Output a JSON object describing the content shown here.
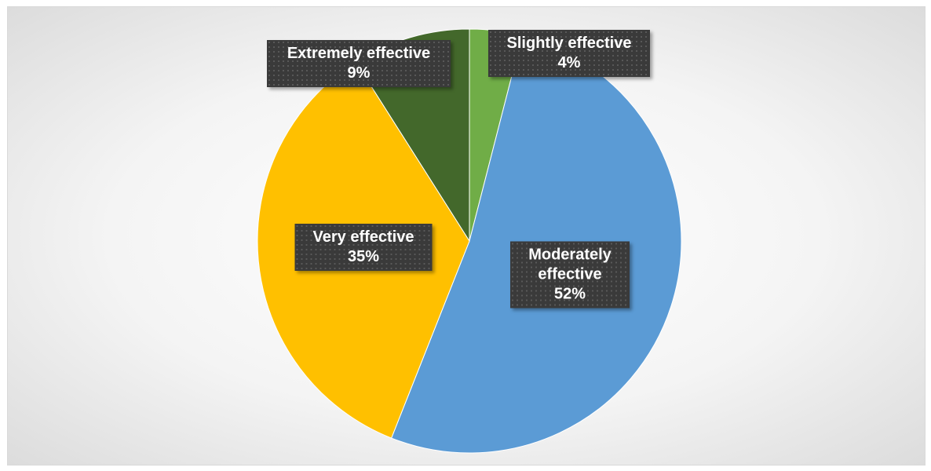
{
  "chart_data": {
    "type": "pie",
    "categories": [
      "Slightly effective",
      "Moderately effective",
      "Very effective",
      "Extremely effective"
    ],
    "values": [
      4,
      52,
      35,
      9
    ],
    "value_labels": [
      "4%",
      "52%",
      "35%",
      "9%"
    ],
    "colors": [
      "#70ad47",
      "#5b9bd5",
      "#ffc000",
      "#43682b"
    ]
  }
}
